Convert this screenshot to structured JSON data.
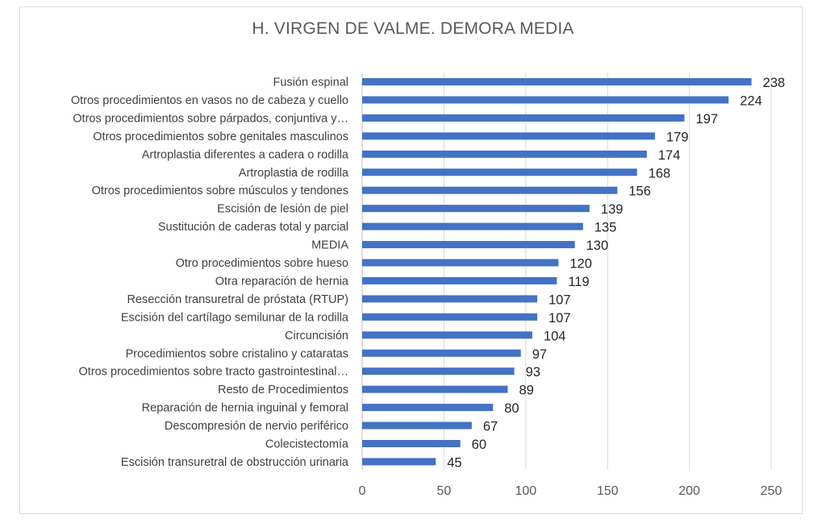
{
  "chart_data": {
    "type": "bar",
    "orientation": "horizontal",
    "title": "H. VIRGEN DE VALME. DEMORA MEDIA",
    "xlim": [
      0,
      250
    ],
    "x_ticks": [
      "0",
      "50",
      "100",
      "150",
      "200",
      "250"
    ],
    "grid": "vertical",
    "bar_color": "#4472c4",
    "categories": [
      "Fusión espinal",
      "Otros procedimientos en vasos no de cabeza y cuello",
      "Otros procedimientos sobre párpados, conjuntiva y…",
      "Otros procedimientos sobre genitales masculinos",
      "Artroplastia diferentes a cadera o rodilla",
      "Artroplastia de rodilla",
      "Otros procedimientos sobre músculos y tendones",
      "Escisión de lesión de piel",
      "Sustitución de caderas total y parcial",
      "MEDIA",
      "Otro procedimientos sobre hueso",
      "Otra reparación de hernia",
      "Resección transuretral de próstata (RTUP)",
      "Escisión del cartílago semilunar de la rodilla",
      "Circuncisión",
      "Procedimientos sobre cristalino y cataratas",
      "Otros procedimientos sobre tracto gastrointestinal…",
      "Resto de Procedimientos",
      "Reparación de hernia inguinal y femoral",
      "Descompresión de nervio periférico",
      "Colecistectomía",
      "Escisión transuretral de obstrucción urinaria"
    ],
    "values": [
      238,
      224,
      197,
      179,
      174,
      168,
      156,
      139,
      135,
      130,
      120,
      119,
      107,
      107,
      104,
      97,
      93,
      89,
      80,
      67,
      60,
      45
    ]
  }
}
